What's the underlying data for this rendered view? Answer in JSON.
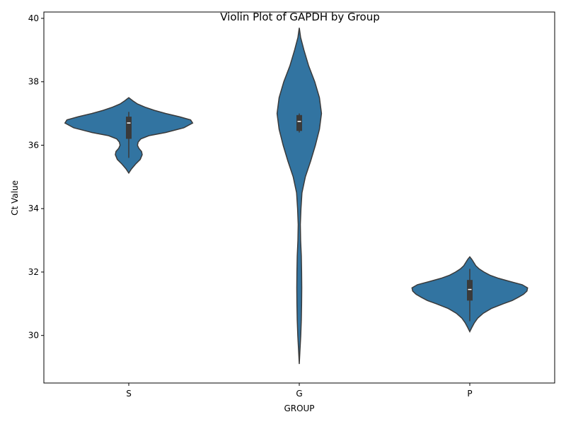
{
  "chart_data": {
    "type": "violin",
    "title": "Violin Plot of GAPDH by Group",
    "xlabel": "GROUP",
    "ylabel": "Ct Value",
    "ylim": [
      28.5,
      40.2
    ],
    "yticks": [
      30,
      32,
      34,
      36,
      38,
      40
    ],
    "categories": [
      "S",
      "G",
      "P"
    ],
    "grid": false,
    "color": "#3274a1",
    "edge_color": "#3a3a3a",
    "violins": [
      {
        "category": "S",
        "profile": [
          [
            35.12,
            0.0
          ],
          [
            35.25,
            0.04
          ],
          [
            35.4,
            0.1
          ],
          [
            35.55,
            0.17
          ],
          [
            35.7,
            0.2
          ],
          [
            35.8,
            0.19
          ],
          [
            35.9,
            0.15
          ],
          [
            36.0,
            0.13
          ],
          [
            36.1,
            0.14
          ],
          [
            36.2,
            0.18
          ],
          [
            36.3,
            0.3
          ],
          [
            36.4,
            0.55
          ],
          [
            36.55,
            0.82
          ],
          [
            36.7,
            0.95
          ],
          [
            36.8,
            0.92
          ],
          [
            36.9,
            0.75
          ],
          [
            37.0,
            0.55
          ],
          [
            37.1,
            0.38
          ],
          [
            37.2,
            0.24
          ],
          [
            37.3,
            0.13
          ],
          [
            37.4,
            0.06
          ],
          [
            37.5,
            0.0
          ]
        ],
        "box": {
          "q1": 36.2,
          "median": 36.7,
          "q3": 36.9,
          "whisker_low": 35.6,
          "whisker_high": 37.05
        }
      },
      {
        "category": "G",
        "profile": [
          [
            29.1,
            0.0
          ],
          [
            29.5,
            0.01
          ],
          [
            30.0,
            0.022
          ],
          [
            30.5,
            0.03
          ],
          [
            31.0,
            0.035
          ],
          [
            31.5,
            0.037
          ],
          [
            32.0,
            0.035
          ],
          [
            32.5,
            0.03
          ],
          [
            33.0,
            0.02
          ],
          [
            33.5,
            0.016
          ],
          [
            34.0,
            0.025
          ],
          [
            34.5,
            0.04
          ],
          [
            35.0,
            0.09
          ],
          [
            35.5,
            0.17
          ],
          [
            36.0,
            0.24
          ],
          [
            36.5,
            0.3
          ],
          [
            37.0,
            0.33
          ],
          [
            37.5,
            0.3
          ],
          [
            38.0,
            0.23
          ],
          [
            38.5,
            0.14
          ],
          [
            39.0,
            0.07
          ],
          [
            39.4,
            0.02
          ],
          [
            39.7,
            0.0
          ]
        ],
        "box": {
          "q1": 36.45,
          "median": 36.75,
          "q3": 36.95,
          "whisker_low": 36.4,
          "whisker_high": 37.0
        }
      },
      {
        "category": "P",
        "profile": [
          [
            30.12,
            0.0
          ],
          [
            30.25,
            0.03
          ],
          [
            30.4,
            0.07
          ],
          [
            30.55,
            0.12
          ],
          [
            30.7,
            0.2
          ],
          [
            30.85,
            0.32
          ],
          [
            31.0,
            0.5
          ],
          [
            31.1,
            0.63
          ],
          [
            31.2,
            0.72
          ],
          [
            31.3,
            0.8
          ],
          [
            31.4,
            0.85
          ],
          [
            31.5,
            0.86
          ],
          [
            31.6,
            0.78
          ],
          [
            31.7,
            0.6
          ],
          [
            31.8,
            0.43
          ],
          [
            31.9,
            0.3
          ],
          [
            32.0,
            0.21
          ],
          [
            32.1,
            0.14
          ],
          [
            32.2,
            0.09
          ],
          [
            32.3,
            0.06
          ],
          [
            32.4,
            0.03
          ],
          [
            32.48,
            0.0
          ]
        ],
        "box": {
          "q1": 31.1,
          "median": 31.45,
          "q3": 31.75,
          "whisker_low": 30.45,
          "whisker_high": 32.1
        }
      }
    ]
  }
}
